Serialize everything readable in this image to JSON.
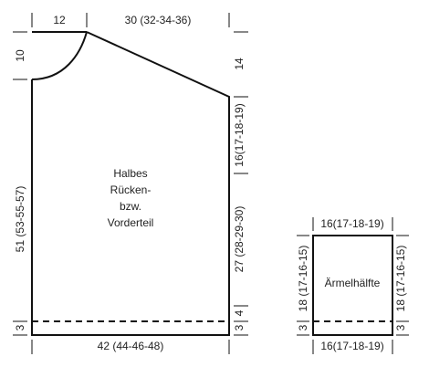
{
  "main_piece": {
    "label": [
      "Halbes",
      "Rücken-",
      "bzw.",
      "Vorderteil"
    ],
    "dimensions": {
      "neck_width": "12",
      "shoulder_width": "30 (32-34-36)",
      "neck_depth": "10",
      "shoulder_slope": "14",
      "armhole": "16(17-18-19)",
      "side": "27 (28-29-30)",
      "side_lower": "4",
      "hem_right": "3",
      "length": "51 (53-55-57)",
      "hem_left": "3",
      "width": "42 (44-46-48)"
    }
  },
  "sleeve": {
    "label": "Ärmelhälfte",
    "dimensions": {
      "top_width": "16(17-18-19)",
      "left_length": "18 (17-16-15)",
      "left_hem": "3",
      "right_length": "18 (17-16-15)",
      "right_hem": "3",
      "bottom_width": "16(17-18-19)"
    }
  }
}
